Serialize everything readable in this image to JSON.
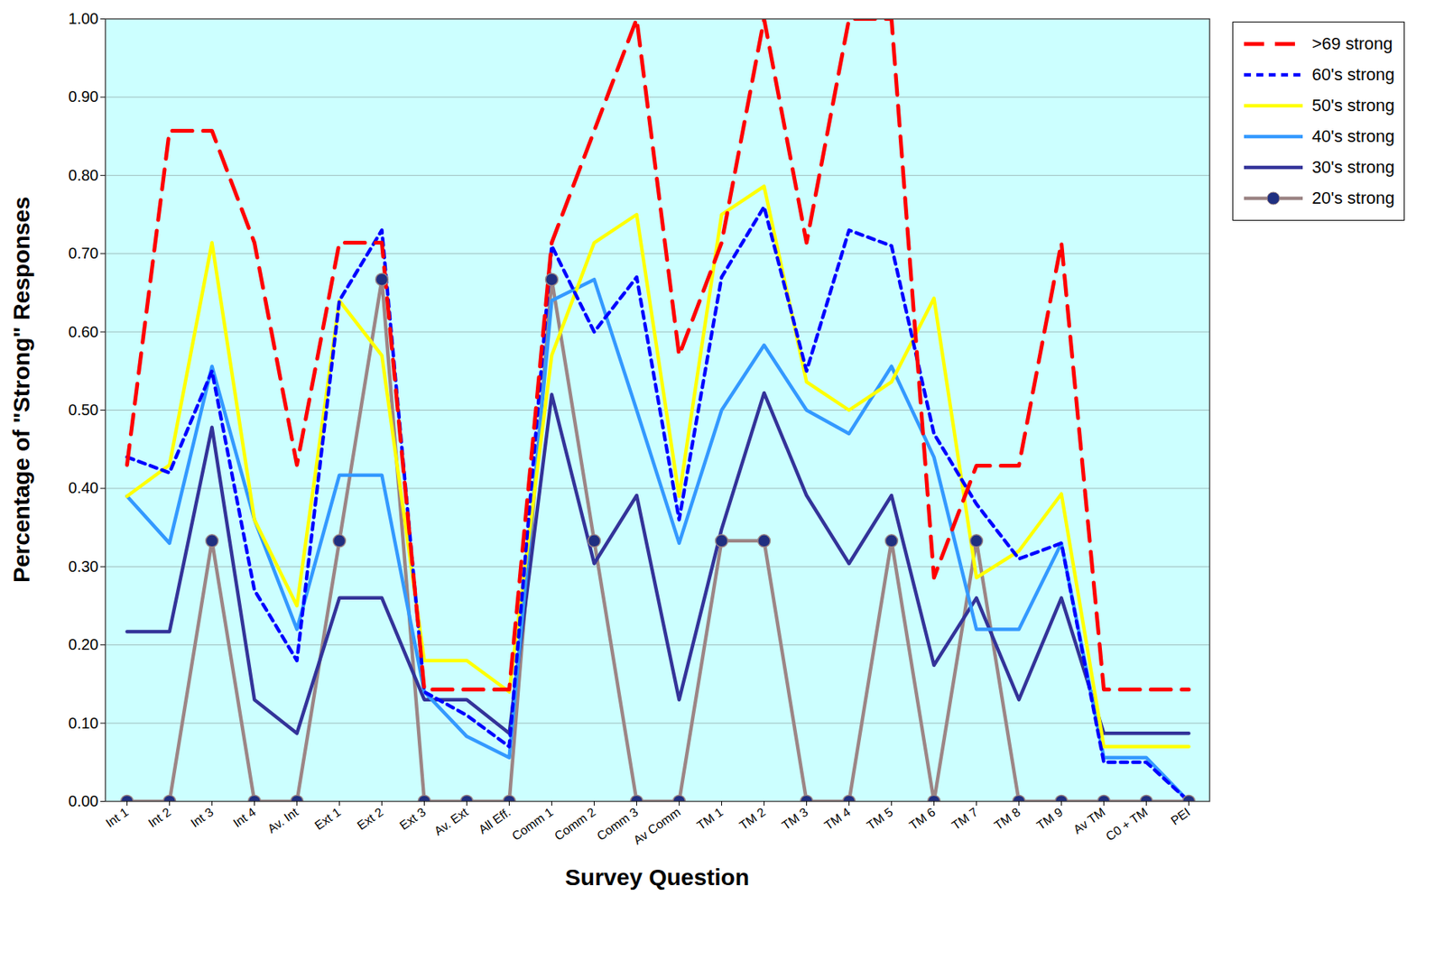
{
  "chart_data": {
    "type": "line",
    "x_label": "Survey Question",
    "y_label": "Percentage of \"Strong\" Responses",
    "categories": [
      "Int 1",
      "Int 2",
      "Int 3",
      "Int 4",
      "Av. Int",
      "Ext 1",
      "Ext 2",
      "Ext 3",
      "Av. Ext",
      "All Eff.",
      "Comm 1",
      "Comm 2",
      "Comm 3",
      "Av Comm",
      "TM 1",
      "TM 2",
      "TM 3",
      "TM 4",
      "TM 5",
      "TM 6",
      "TM 7",
      "TM 8",
      "TM 9",
      "Av TM",
      "C0 + TM",
      "PEI"
    ],
    "ylim": [
      0,
      1
    ],
    "yticks": [
      {
        "value": 0,
        "label": "0.00"
      },
      {
        "value": 0.1,
        "label": "0.10"
      },
      {
        "value": 0.2,
        "label": "0.20"
      },
      {
        "value": 0.3,
        "label": "0.30"
      },
      {
        "value": 0.4,
        "label": "0.40"
      },
      {
        "value": 0.5,
        "label": "0.50"
      },
      {
        "value": 0.6,
        "label": "0.60"
      },
      {
        "value": 0.7,
        "label": "0.70"
      },
      {
        "value": 0.8,
        "label": "0.80"
      },
      {
        "value": 0.9,
        "label": "0.90"
      },
      {
        "value": 1,
        "label": "1.00"
      }
    ],
    "grid": true,
    "legend": "top-right",
    "series": [
      {
        "name": ">69 strong",
        "color": "#ff0000",
        "line_style": "dashed",
        "values": [
          0.43,
          0.857,
          0.857,
          0.714,
          0.43,
          0.714,
          0.714,
          0.143,
          0.143,
          0.143,
          0.714,
          0.857,
          1.0,
          0.57,
          0.714,
          1.0,
          0.714,
          1.0,
          1.0,
          0.286,
          0.429,
          0.429,
          0.714,
          0.143,
          0.143,
          0.143
        ]
      },
      {
        "name": "60's strong",
        "color": "#0000ff",
        "line_style": "dotted",
        "values": [
          0.44,
          0.42,
          0.55,
          0.27,
          0.18,
          0.64,
          0.73,
          0.14,
          0.11,
          0.07,
          0.71,
          0.6,
          0.67,
          0.36,
          0.67,
          0.76,
          0.55,
          0.73,
          0.71,
          0.47,
          0.38,
          0.31,
          0.33,
          0.05,
          0.05,
          0.0
        ]
      },
      {
        "name": "50's strong",
        "color": "#ffff00",
        "line_style": "solid",
        "values": [
          0.39,
          0.43,
          0.714,
          0.36,
          0.25,
          0.64,
          0.57,
          0.18,
          0.18,
          0.14,
          0.57,
          0.714,
          0.75,
          0.39,
          0.75,
          0.786,
          0.536,
          0.5,
          0.536,
          0.643,
          0.286,
          0.32,
          0.393,
          0.07,
          0.07,
          0.07
        ]
      },
      {
        "name": "40's strong",
        "color": "#3399ff",
        "line_style": "solid",
        "values": [
          0.39,
          0.33,
          0.556,
          0.36,
          0.22,
          0.417,
          0.417,
          0.14,
          0.083,
          0.056,
          0.64,
          0.667,
          0.5,
          0.33,
          0.5,
          0.583,
          0.5,
          0.47,
          0.556,
          0.44,
          0.22,
          0.22,
          0.33,
          0.056,
          0.056,
          0.0
        ]
      },
      {
        "name": "30's strong",
        "color": "#333399",
        "line_style": "solid",
        "values": [
          0.217,
          0.217,
          0.478,
          0.13,
          0.087,
          0.26,
          0.26,
          0.13,
          0.13,
          0.087,
          0.52,
          0.304,
          0.391,
          0.13,
          0.348,
          0.522,
          0.391,
          0.304,
          0.391,
          0.174,
          0.26,
          0.13,
          0.26,
          0.087,
          0.087,
          0.087
        ]
      },
      {
        "name": "20's strong",
        "color": "#9c8585",
        "line_style": "solid",
        "marker": "circle",
        "values": [
          0,
          0,
          0.333,
          0,
          0,
          0.333,
          0.667,
          0,
          0,
          0,
          0.667,
          0.333,
          0,
          0,
          0.333,
          0.333,
          0,
          0,
          0.333,
          0,
          0.333,
          0,
          0,
          0,
          0,
          0
        ]
      }
    ]
  }
}
